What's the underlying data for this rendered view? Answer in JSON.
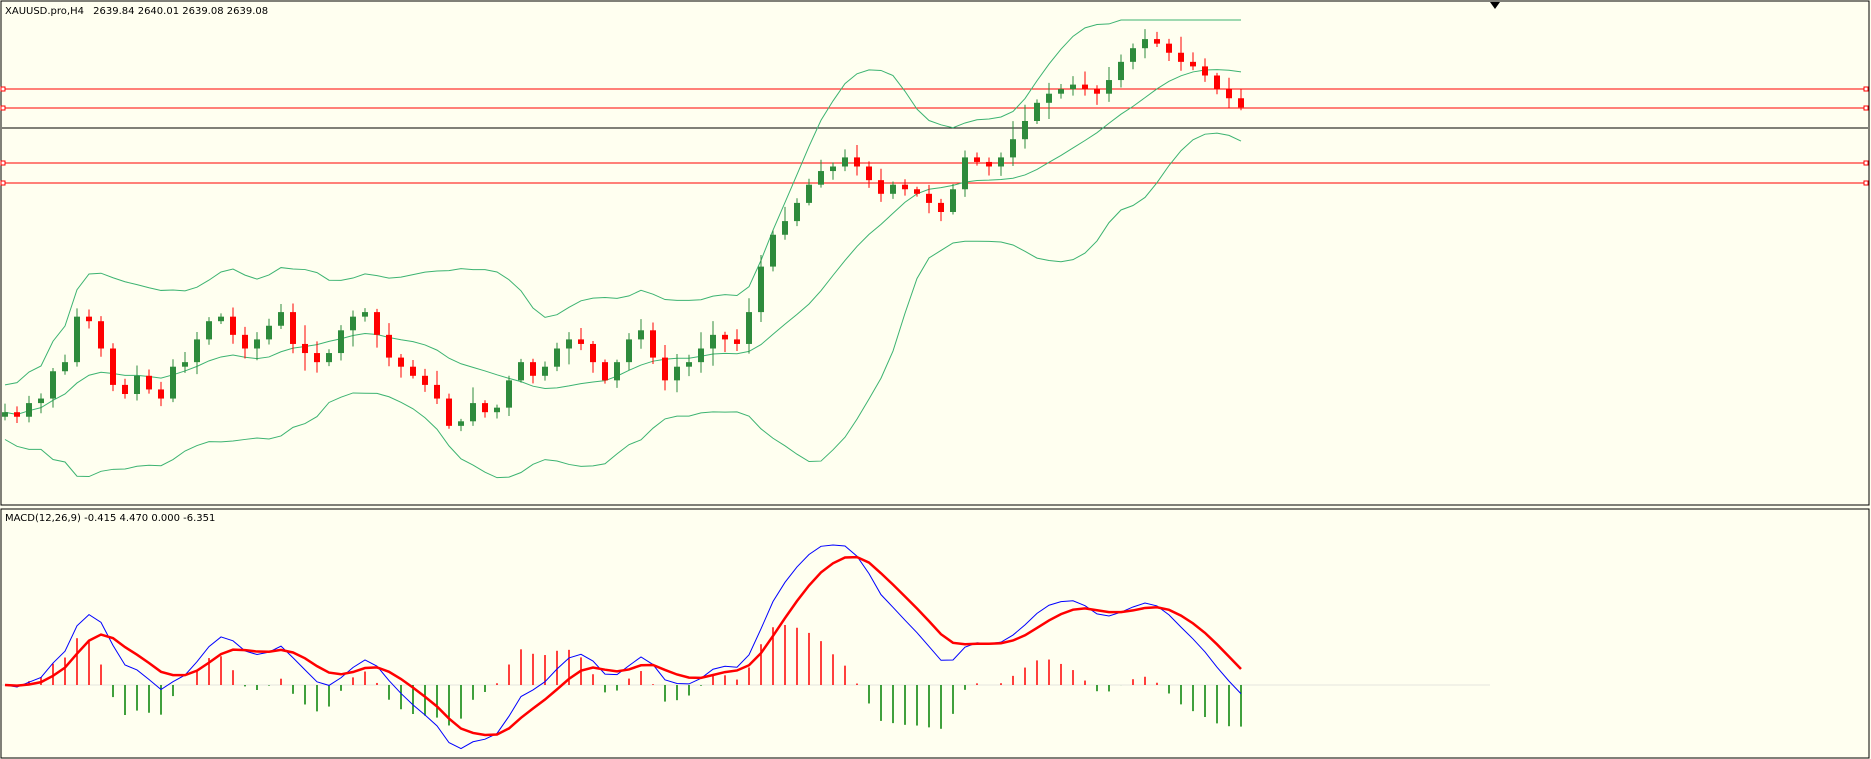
{
  "header": {
    "symbol": "XAUUSD.pro,H4",
    "ohlc": "2639.84 2640.01 2639.08 2639.08"
  },
  "indicator": {
    "label": "MACD(12,26,9) -0.415 4.470 0.000 -6.351"
  },
  "colors": {
    "background": "#fffff0",
    "border": "#000000",
    "bull": "#2e8b3c",
    "bear": "#ff0000",
    "bands": "#3cb371",
    "level_line": "#ff0000",
    "price_line": "#000000",
    "macd_line": "#0000ff",
    "signal_line": "#ff0000",
    "hist_pos": "#ff0000",
    "hist_neg": "#008000"
  },
  "chart_data": [
    {
      "type": "candlestick",
      "symbol": "XAUUSD.pro",
      "timeframe": "H4",
      "current_price": 2639.08,
      "horizontal_levels_count": 4,
      "overlays": [
        "Bollinger Bands (upper, middle, lower)"
      ],
      "close_series_estimated": [
        0.16,
        0.15,
        0.18,
        0.19,
        0.25,
        0.27,
        0.37,
        0.36,
        0.3,
        0.22,
        0.2,
        0.24,
        0.21,
        0.19,
        0.26,
        0.27,
        0.32,
        0.36,
        0.37,
        0.33,
        0.3,
        0.32,
        0.35,
        0.38,
        0.31,
        0.29,
        0.27,
        0.29,
        0.34,
        0.37,
        0.38,
        0.33,
        0.28,
        0.26,
        0.24,
        0.22,
        0.19,
        0.13,
        0.14,
        0.18,
        0.16,
        0.17,
        0.23,
        0.27,
        0.24,
        0.26,
        0.3,
        0.32,
        0.31,
        0.27,
        0.23,
        0.27,
        0.32,
        0.34,
        0.28,
        0.23,
        0.26,
        0.27,
        0.3,
        0.33,
        0.32,
        0.31,
        0.38,
        0.48,
        0.55,
        0.58,
        0.62,
        0.66,
        0.69,
        0.7,
        0.72,
        0.7,
        0.67,
        0.64,
        0.66,
        0.65,
        0.64,
        0.62,
        0.6,
        0.65,
        0.72,
        0.71,
        0.7,
        0.72,
        0.76,
        0.8,
        0.84,
        0.86,
        0.87,
        0.88,
        0.87,
        0.86,
        0.89,
        0.93,
        0.96,
        0.98,
        0.97,
        0.95,
        0.93,
        0.92,
        0.9,
        0.87,
        0.85,
        0.83
      ]
    },
    {
      "type": "line",
      "name": "MACD(12,26,9)",
      "values_label": "-0.415 4.470 0.000 -6.351",
      "series": [
        {
          "name": "macd",
          "style": "thin blue line"
        },
        {
          "name": "signal",
          "style": "thick red line"
        },
        {
          "name": "histogram",
          "style": "red/green bars"
        }
      ]
    }
  ]
}
